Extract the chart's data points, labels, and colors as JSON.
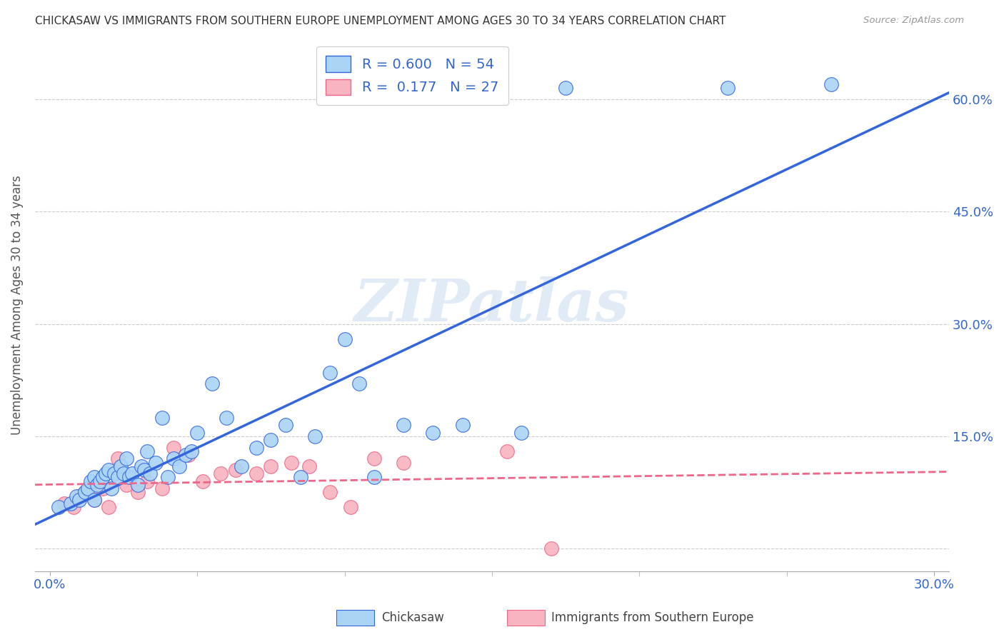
{
  "title": "CHICKASAW VS IMMIGRANTS FROM SOUTHERN EUROPE UNEMPLOYMENT AMONG AGES 30 TO 34 YEARS CORRELATION CHART",
  "source": "Source: ZipAtlas.com",
  "ylabel": "Unemployment Among Ages 30 to 34 years",
  "xlim": [
    -0.005,
    0.305
  ],
  "ylim": [
    -0.03,
    0.68
  ],
  "x_tick_positions": [
    0.0,
    0.05,
    0.1,
    0.15,
    0.2,
    0.25,
    0.3
  ],
  "x_tick_labels": [
    "0.0%",
    "",
    "",
    "",
    "",
    "",
    "30.0%"
  ],
  "y_tick_positions": [
    0.0,
    0.15,
    0.3,
    0.45,
    0.6
  ],
  "y_tick_labels": [
    "",
    "15.0%",
    "30.0%",
    "45.0%",
    "60.0%"
  ],
  "chickasaw_color": "#aad4f5",
  "immigrant_color": "#f8b4c0",
  "chickasaw_line_color": "#3366dd",
  "immigrant_line_color": "#ee6688",
  "R_chickasaw": 0.6,
  "N_chickasaw": 54,
  "R_immigrant": 0.177,
  "N_immigrant": 27,
  "legend_label_1": "Chickasaw",
  "legend_label_2": "Immigrants from Southern Europe",
  "watermark": "ZIPatlas",
  "chickasaw_x": [
    0.003,
    0.007,
    0.009,
    0.01,
    0.012,
    0.013,
    0.014,
    0.015,
    0.015,
    0.016,
    0.017,
    0.018,
    0.019,
    0.02,
    0.021,
    0.022,
    0.023,
    0.024,
    0.025,
    0.026,
    0.027,
    0.028,
    0.03,
    0.031,
    0.032,
    0.033,
    0.034,
    0.036,
    0.038,
    0.04,
    0.042,
    0.044,
    0.046,
    0.048,
    0.05,
    0.055,
    0.06,
    0.065,
    0.07,
    0.075,
    0.08,
    0.085,
    0.09,
    0.095,
    0.1,
    0.105,
    0.11,
    0.12,
    0.13,
    0.14,
    0.16,
    0.175,
    0.23,
    0.265
  ],
  "chickasaw_y": [
    0.055,
    0.06,
    0.07,
    0.065,
    0.075,
    0.08,
    0.09,
    0.065,
    0.095,
    0.085,
    0.09,
    0.095,
    0.1,
    0.105,
    0.08,
    0.1,
    0.095,
    0.11,
    0.1,
    0.12,
    0.095,
    0.1,
    0.085,
    0.11,
    0.105,
    0.13,
    0.1,
    0.115,
    0.175,
    0.095,
    0.12,
    0.11,
    0.125,
    0.13,
    0.155,
    0.22,
    0.175,
    0.11,
    0.135,
    0.145,
    0.165,
    0.095,
    0.15,
    0.235,
    0.28,
    0.22,
    0.095,
    0.165,
    0.155,
    0.165,
    0.155,
    0.615,
    0.615,
    0.62
  ],
  "immigrant_x": [
    0.005,
    0.008,
    0.01,
    0.012,
    0.015,
    0.018,
    0.02,
    0.023,
    0.026,
    0.03,
    0.033,
    0.038,
    0.042,
    0.047,
    0.052,
    0.058,
    0.063,
    0.07,
    0.075,
    0.082,
    0.088,
    0.095,
    0.102,
    0.11,
    0.12,
    0.155,
    0.17
  ],
  "immigrant_y": [
    0.06,
    0.055,
    0.07,
    0.075,
    0.065,
    0.08,
    0.055,
    0.12,
    0.085,
    0.075,
    0.09,
    0.08,
    0.135,
    0.125,
    0.09,
    0.1,
    0.105,
    0.1,
    0.11,
    0.115,
    0.11,
    0.075,
    0.055,
    0.12,
    0.115,
    0.13,
    0.0
  ]
}
